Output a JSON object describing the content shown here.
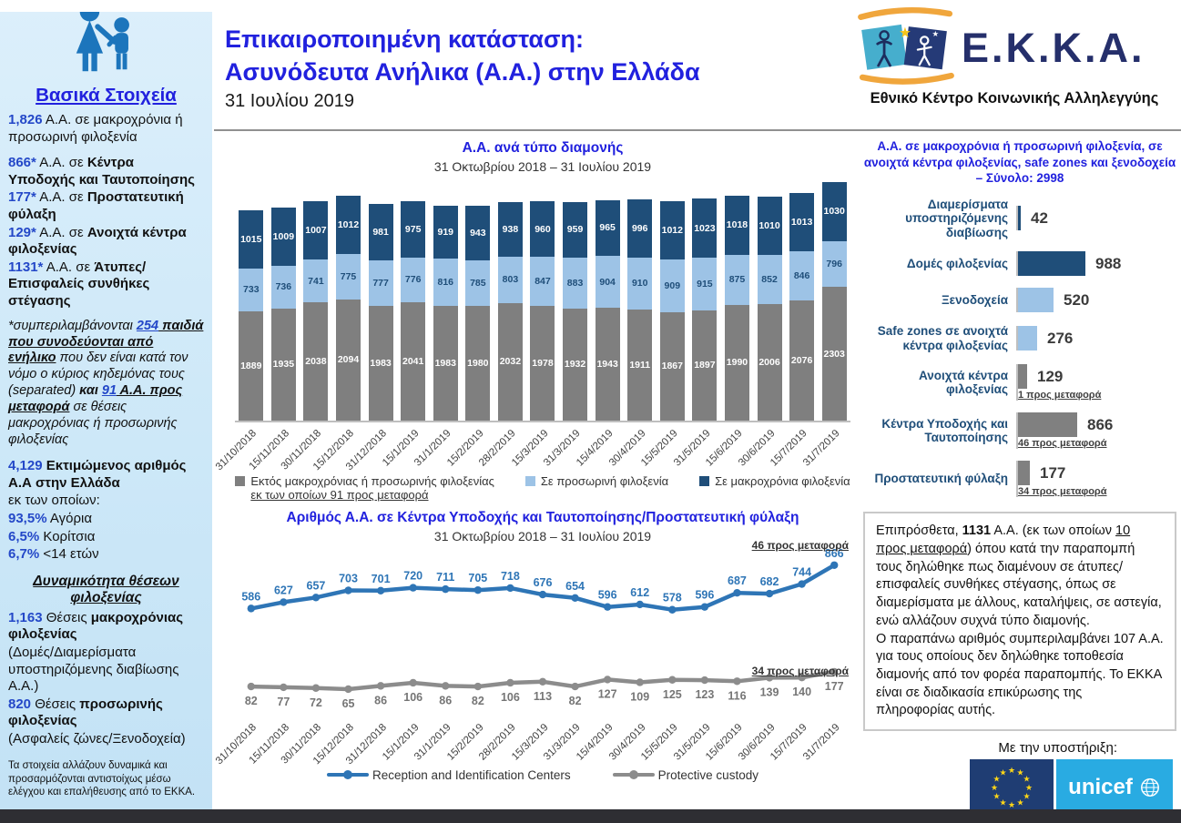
{
  "page": {
    "title_line1": "Επικαιροποιημένη κατάσταση:",
    "title_line2": "Ασυνόδευτα Ανήλικα (Α.Α.) στην Ελλάδα",
    "date": "31 Ιουλίου 2019"
  },
  "logo": {
    "acronym": "Ε.Κ.Κ.Α.",
    "subtitle": "Εθνικό Κέντρο Κοινωνικής Αλληλεγγύης"
  },
  "sidebar": {
    "heading": "Βασικά Στοιχεία",
    "blocks": [
      [
        {
          "t": "1,826",
          "c": "num"
        },
        {
          "t": " Α.Α. σε μακροχρόνια ή προσωρινή φιλοξενία"
        }
      ],
      [
        {
          "t": "866*",
          "c": "num"
        },
        {
          "t": " Α.Α. σε "
        },
        {
          "t": "Κέντρα Υποδοχής και Ταυτοποίησης",
          "c": "b"
        }
      ],
      [
        {
          "t": "177*",
          "c": "num"
        },
        {
          "t": " Α.Α. σε "
        },
        {
          "t": "Προστατευτική φύλαξη",
          "c": "b"
        }
      ],
      [
        {
          "t": "129*",
          "c": "num"
        },
        {
          "t": " Α.Α. σε "
        },
        {
          "t": "Ανοιχτά κέντρα φιλοξενίας",
          "c": "b"
        }
      ],
      [
        {
          "t": "1131*",
          "c": "num"
        },
        {
          "t": " Α.Α. σε "
        },
        {
          "t": "Άτυπες/Επισφαλείς συνθήκες στέγασης",
          "c": "b"
        }
      ],
      [
        {
          "t": "*συμπεριλαμβάνονται "
        },
        {
          "t": "254",
          "c": "num u"
        },
        {
          "t": " παιδιά που συνοδεύονται από ενήλικο",
          "c": "b u"
        },
        {
          "t": " που δεν είναι κατά τον νόμο ο κύριος κηδεμόνας τους (separated)"
        },
        {
          "t": " και ",
          "c": "b"
        },
        {
          "t": "91",
          "c": "num u"
        },
        {
          "t": " Α.Α. προς μεταφορά",
          "c": "b u"
        },
        {
          "t": " σε θέσεις μακροχρόνιας ή προσωρινής φιλοξενίας"
        }
      ],
      [
        {
          "t": "4,129",
          "c": "num"
        },
        {
          "t": " "
        },
        {
          "t": "Εκτιμώμενος αριθμός Α.Α στην Ελλάδα",
          "c": "b"
        }
      ],
      [
        {
          "t": "εκ των οποίων:"
        }
      ],
      [
        {
          "t": "93,5%",
          "c": "num"
        },
        {
          "t": " Αγόρια"
        }
      ],
      [
        {
          "t": "6,5%",
          "c": "num"
        },
        {
          "t": " Κορίτσια"
        }
      ],
      [
        {
          "t": "6,7%",
          "c": "num"
        },
        {
          "t": " <14 ετών"
        }
      ]
    ],
    "capacity_heading": "Δυναμικότητα θέσεων φιλοξενίας",
    "capacity_blocks": [
      [
        {
          "t": "1,163",
          "c": "num"
        },
        {
          "t": " Θέσεις "
        },
        {
          "t": "μακροχρόνιας φιλοξενίας",
          "c": "b"
        }
      ],
      [
        {
          "t": "(Δομές/Διαμερίσματα υποστηριζόμενης διαβίωσης Α.Α.)"
        }
      ],
      [
        {
          "t": "820",
          "c": "num"
        },
        {
          "t": " Θέσεις "
        },
        {
          "t": "προσωρινής φιλοξενίας",
          "c": "b"
        }
      ],
      [
        {
          "t": "(Ασφαλείς ζώνες/Ξενοδοχεία)"
        }
      ]
    ],
    "footnote": "Τα στοιχεία αλλάζουν δυναμικά και προσαρμόζονται αντιστοίχως μέσω ελέγχου και επαλήθευσης από το ΕΚΚΑ."
  },
  "chart_data": [
    {
      "type": "bar",
      "stacked": true,
      "title": "Α.Α. ανά τύπο διαμονής",
      "subtitle": "31 Οκτωβρίου 2018 – 31 Ιουλίου 2019",
      "categories": [
        "31/10/2018",
        "15/11/2018",
        "30/11/2018",
        "15/12/2018",
        "31/12/2018",
        "15/1/2019",
        "31/1/2019",
        "15/2/2019",
        "28/2/2019",
        "15/3/2019",
        "31/3/2019",
        "15/4/2019",
        "30/4/2019",
        "15/5/2019",
        "31/5/2019",
        "15/6/2019",
        "30/6/2019",
        "15/7/2019",
        "31/7/2019"
      ],
      "series": [
        {
          "name": "Εκτός μακροχρόνιας ή προσωρινής φιλοξενίας εκ των οποίων 91 προς μεταφορά",
          "color": "#7F7F7F",
          "values": [
            1889,
            1935,
            2038,
            2094,
            1983,
            2041,
            1983,
            1980,
            2032,
            1978,
            1932,
            1943,
            1911,
            1867,
            1897,
            1990,
            2006,
            2076,
            2303
          ]
        },
        {
          "name": "Σε προσωρινή φιλοξενία",
          "color": "#9DC3E6",
          "values": [
            733,
            736,
            741,
            775,
            777,
            776,
            816,
            785,
            803,
            847,
            883,
            904,
            910,
            909,
            915,
            875,
            852,
            846,
            796
          ]
        },
        {
          "name": "Σε μακροχρόνια φιλοξενία",
          "color": "#1F4E79",
          "values": [
            1015,
            1009,
            1007,
            1012,
            981,
            975,
            919,
            943,
            938,
            960,
            959,
            965,
            996,
            1012,
            1023,
            1018,
            1010,
            1013,
            1030
          ]
        }
      ],
      "legend": [
        {
          "line1": "Εκτός μακροχρόνιας ή προσωρινής φιλοξενίας",
          "line2": "εκ των οποίων 91 προς μεταφορά",
          "color": "#7F7F7F"
        },
        {
          "line1": "Σε προσωρινή φιλοξενία",
          "color": "#9DC3E6"
        },
        {
          "line1": "Σε μακροχρόνια φιλοξενία",
          "color": "#1F4E79"
        }
      ],
      "legend_position": "bottom",
      "grid": false
    },
    {
      "type": "bar",
      "orientation": "horizontal",
      "title": "Α.Α. σε μακροχρόνια ή προσωρινή φιλοξενία, σε ανοιχτά κέντρα φιλοξενίας, safe zones και ξενοδοχεία – Σύνολο: 2998",
      "total": 2998,
      "categories": [
        "Διαμερίσματα υποστηριζόμενης διαβίωσης",
        "Δομές φιλοξενίας",
        "Ξενοδοχεία",
        "Safe zones σε ανοιχτά κέντρα φιλοξενίας",
        "Ανοιχτά κέντρα φιλοξενίας",
        "Κέντρα Υποδοχής και Ταυτοποίησης",
        "Προστατευτική φύλαξη"
      ],
      "values": [
        42,
        988,
        520,
        276,
        129,
        866,
        177
      ],
      "colors": [
        "#1F4E79",
        "#1F4E79",
        "#9DC3E6",
        "#9DC3E6",
        "#808080",
        "#808080",
        "#808080"
      ],
      "notes": [
        null,
        null,
        null,
        null,
        "1 προς μεταφορά",
        "46 προς μεταφορά",
        "34 προς μεταφορά"
      ]
    },
    {
      "type": "line",
      "title": "Αριθμός Α.Α. σε Κέντρα Υποδοχής και Ταυτοποίησης/Προστατευτική φύλαξη",
      "subtitle": "31 Οκτωβρίου 2018 – 31 Ιουλίου 2019",
      "x": [
        "31/10/2018",
        "15/11/2018",
        "30/11/2018",
        "15/12/2018",
        "31/12/2018",
        "15/1/2019",
        "31/1/2019",
        "15/2/2019",
        "28/2/2019",
        "15/3/2019",
        "31/3/2019",
        "15/4/2019",
        "30/4/2019",
        "15/5/2019",
        "31/5/2019",
        "15/6/2019",
        "30/6/2019",
        "15/7/2019",
        "31/7/2019"
      ],
      "series": [
        {
          "name": "Reception and Identification Centers",
          "color": "#2E75B6",
          "values": [
            586,
            627,
            657,
            703,
            701,
            720,
            711,
            705,
            718,
            676,
            654,
            596,
            612,
            578,
            596,
            687,
            682,
            744,
            866
          ],
          "annotation": "46 προς μεταφορά"
        },
        {
          "name": "Protective custody",
          "color": "#8C8C8C",
          "label_color": "#757575",
          "values": [
            82,
            77,
            72,
            65,
            86,
            106,
            86,
            82,
            106,
            113,
            82,
            127,
            109,
            125,
            123,
            116,
            139,
            140,
            177
          ],
          "annotation": "34 προς μεταφορά"
        }
      ],
      "ylim": [
        0,
        900
      ],
      "grid": false,
      "legend_position": "bottom"
    }
  ],
  "note_box": {
    "runs": [
      {
        "t": "Επιπρόσθετα, "
      },
      {
        "t": "1131",
        "c": "b"
      },
      {
        "t": " Α.Α. (εκ των οποίων "
      },
      {
        "t": "10 προς μεταφορά",
        "c": "u"
      },
      {
        "t": ") όπου κατά την παραπομπή τους δηλώθηκε πως διαμένουν σε άτυπες/επισφαλείς συνθήκες στέγασης, όπως σε διαμερίσματα με άλλους, καταλήψεις, σε αστεγία, ενώ αλλάζουν συχνά τύπο διαμονής."
      },
      {
        "br": true
      },
      {
        "t": "Ο παραπάνω αριθμός συμπεριλαμβάνει 107 Α.Α. για τους οποίους δεν δηλώθηκε τοποθεσία διαμονής από τον φορέα παραπομπής. Το ΕΚΚΑ είναι σε διαδικασία επικύρωσης της πληροφορίας αυτής."
      }
    ]
  },
  "support": {
    "label": "Με την υποστήριξη:",
    "unicef_text": "unicef"
  },
  "colors": {
    "accent_blue": "#2121DE",
    "number_blue": "#2448C8",
    "navy": "#1F4E79",
    "light_blue": "#9DC3E6",
    "gray": "#7F7F7F",
    "line_blue": "#2E75B6",
    "line_gray": "#8C8C8C",
    "eu_flag": "#1F3D73",
    "unicef_cyan": "#29ABE2"
  }
}
